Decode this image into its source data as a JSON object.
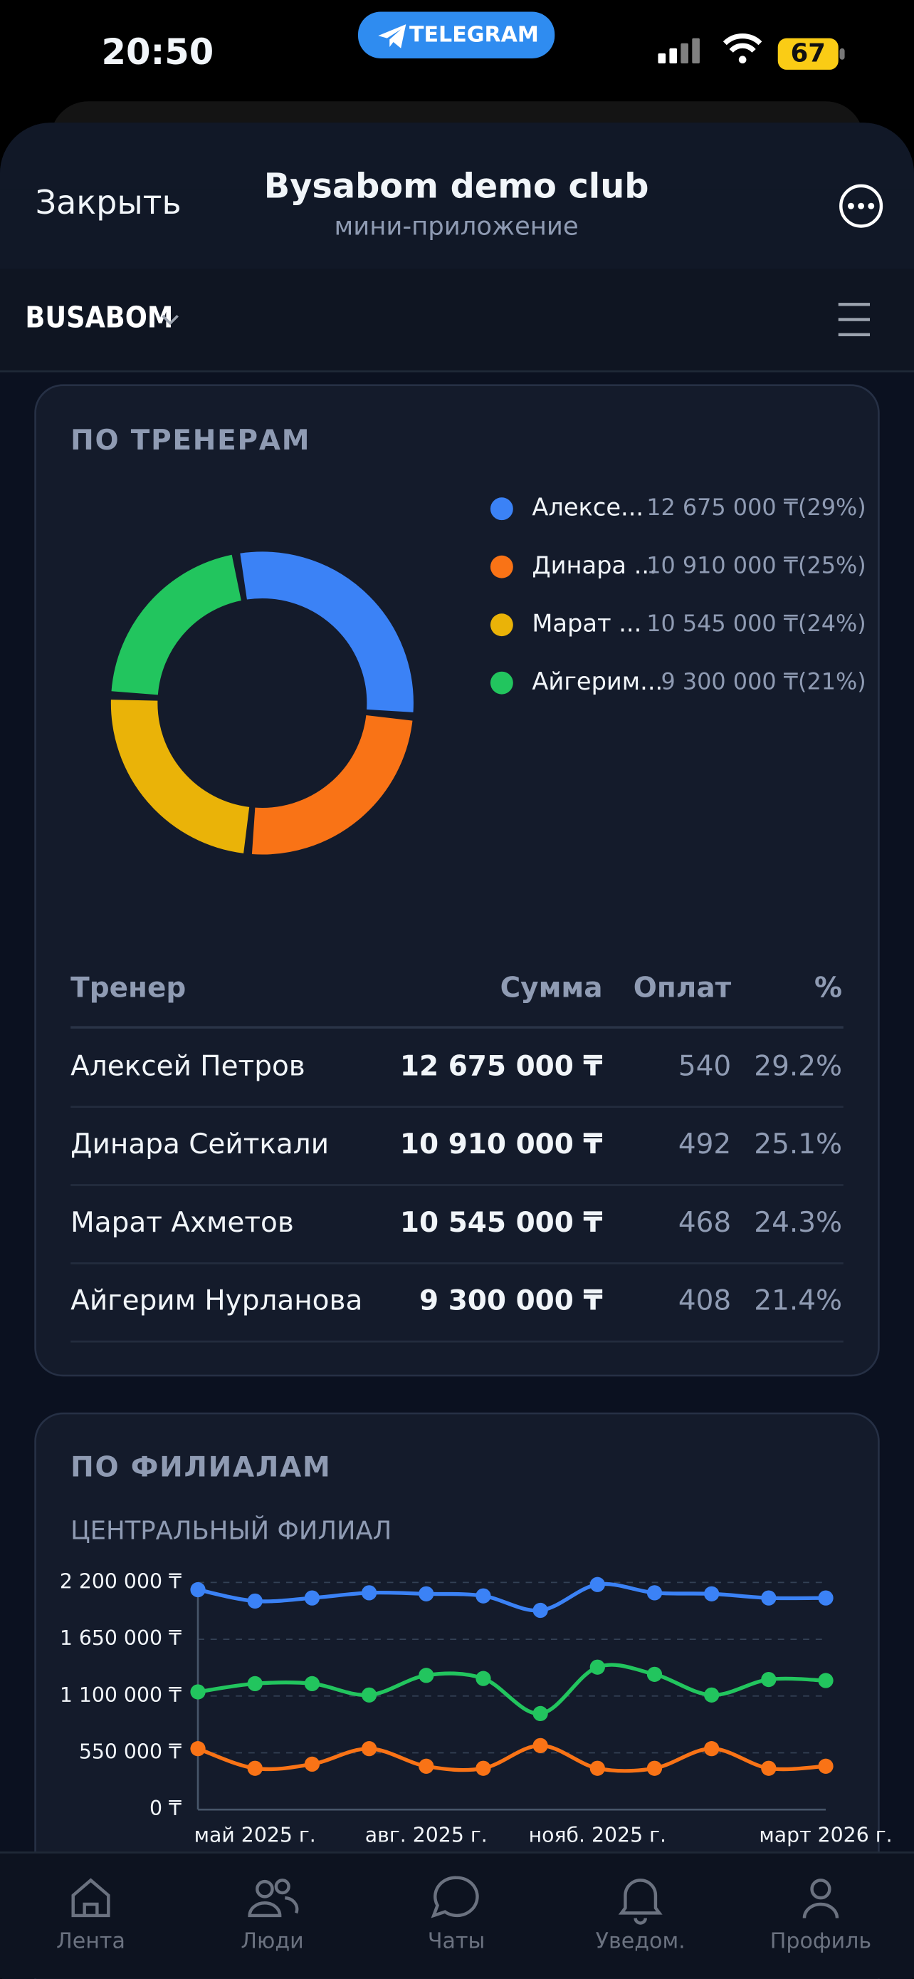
{
  "status": {
    "time": "20:50",
    "app": "TELEGRAM",
    "battery": "67"
  },
  "header": {
    "close": "Закрыть",
    "title": "Bysabom demo club",
    "subtitle": "мини-приложение"
  },
  "brand": "BUSABOM",
  "trainers": {
    "title": "ПО ТРЕНЕРАМ",
    "chart": {
      "type": "pie",
      "categories": [
        "Алексе...",
        "Динара ...",
        "Марат ...",
        "Айгерим..."
      ],
      "values": [
        12675000,
        10910000,
        10545000,
        9300000
      ],
      "value_labels": [
        "12 675 000 ₸(29%)",
        "10 910 000 ₸(25%)",
        "10 545 000 ₸(24%)",
        "9 300 000 ₸(21%)"
      ],
      "colors": [
        "#3b82f6",
        "#f97316",
        "#eab308",
        "#22c55e"
      ]
    },
    "table": {
      "header": [
        "Тренер",
        "Сумма",
        "Оплат",
        "%"
      ],
      "rows": [
        [
          "Алексей Петров",
          "12 675 000 ₸",
          "540",
          "29.2%"
        ],
        [
          "Динара Сейткали",
          "10 910 000 ₸",
          "492",
          "25.1%"
        ],
        [
          "Марат Ахметов",
          "10 545 000 ₸",
          "468",
          "24.3%"
        ],
        [
          "Айгерим Нурланова",
          "9 300 000 ₸",
          "408",
          "21.4%"
        ]
      ]
    }
  },
  "branches": {
    "title": "ПО ФИЛИАЛАМ",
    "subtitle": "ЦЕНТРАЛЬНЫЙ ФИЛИАЛ",
    "chart": {
      "type": "line",
      "categories": [
        null,
        "май 2025 г.",
        null,
        null,
        "авг. 2025 г.",
        null,
        null,
        "нояб. 2025 г.",
        null,
        null,
        null,
        "март 2026 г."
      ],
      "series": [
        {
          "color": "#3b82f6",
          "values": [
            2130000,
            2020000,
            2050000,
            2100000,
            2090000,
            2070000,
            1930000,
            2180000,
            2100000,
            2090000,
            2050000,
            2050000
          ]
        },
        {
          "color": "#22c55e",
          "values": [
            1140000,
            1220000,
            1220000,
            1110000,
            1300000,
            1270000,
            930000,
            1380000,
            1310000,
            1110000,
            1260000,
            1250000
          ]
        },
        {
          "color": "#f97316",
          "values": [
            590000,
            400000,
            440000,
            590000,
            420000,
            400000,
            620000,
            400000,
            400000,
            590000,
            400000,
            420000
          ]
        }
      ],
      "ylim": [
        0,
        2200000
      ],
      "yticks": [
        {
          "value": 0,
          "label": "0 ₸"
        },
        {
          "value": 550000,
          "label": "550 000 ₸"
        },
        {
          "value": 1100000,
          "label": "1 100 000 ₸"
        },
        {
          "value": 1650000,
          "label": "1 650 000 ₸"
        },
        {
          "value": 2200000,
          "label": "2 200 000 ₸"
        }
      ],
      "grid": true
    }
  },
  "nav": [
    "Лента",
    "Люди",
    "Чаты",
    "Уведом.",
    "Профиль"
  ]
}
